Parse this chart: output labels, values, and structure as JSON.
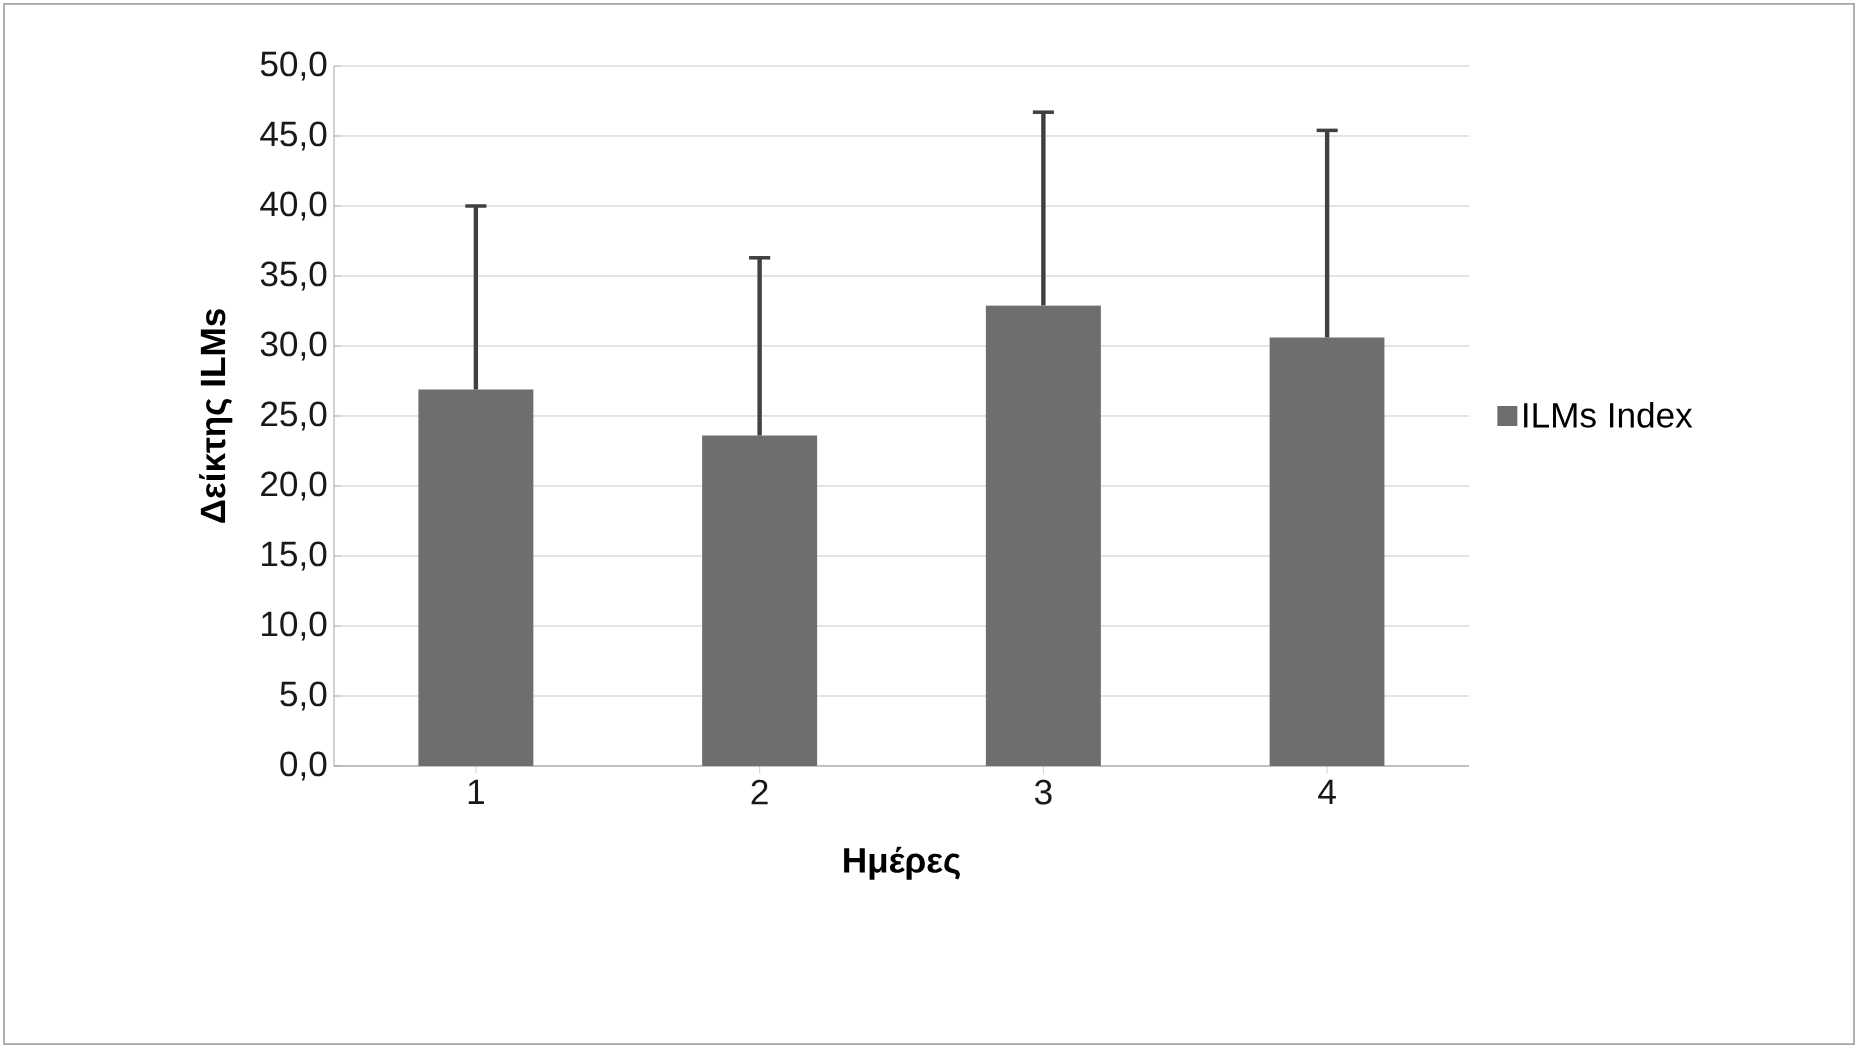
{
  "chart_data": {
    "type": "bar",
    "xlabel": "Ημέρες",
    "ylabel": "Δείκτης ILMs",
    "categories": [
      "1",
      "2",
      "3",
      "4"
    ],
    "series": [
      {
        "name": "ILMs Index",
        "color": "#6e6e6e",
        "values": [
          26.9,
          23.6,
          32.9,
          30.6
        ],
        "errors": [
          13.1,
          12.7,
          13.8,
          14.8
        ]
      }
    ],
    "ylim": [
      0,
      50
    ],
    "yticks": [
      {
        "value": 0,
        "label": "0,0"
      },
      {
        "value": 5,
        "label": "5,0"
      },
      {
        "value": 10,
        "label": "10,0"
      },
      {
        "value": 15,
        "label": "15,0"
      },
      {
        "value": 20,
        "label": "20,0"
      },
      {
        "value": 25,
        "label": "25,0"
      },
      {
        "value": 30,
        "label": "30,0"
      },
      {
        "value": 35,
        "label": "35,0"
      },
      {
        "value": 40,
        "label": "40,0"
      },
      {
        "value": 45,
        "label": "45,0"
      },
      {
        "value": 50,
        "label": "50,0"
      }
    ],
    "grid": "y",
    "legend": "right"
  }
}
